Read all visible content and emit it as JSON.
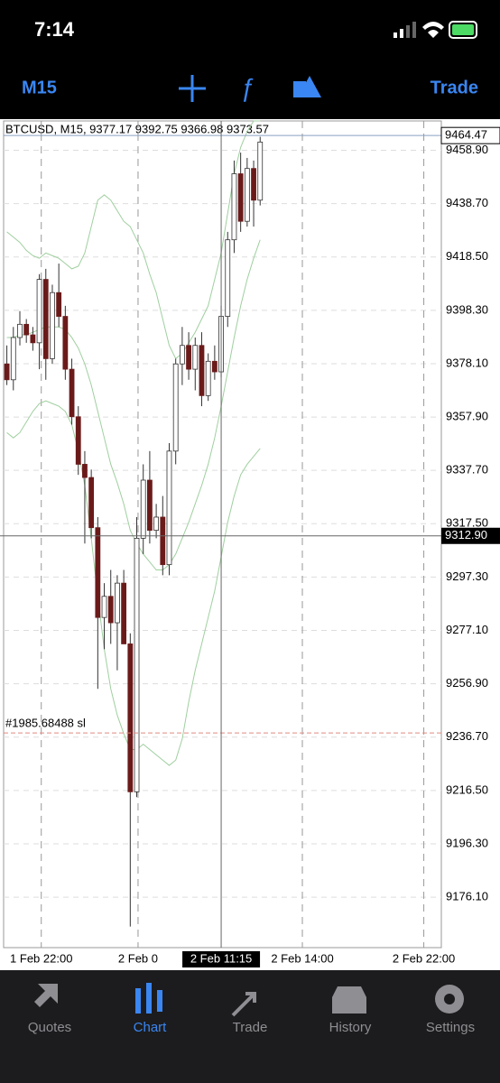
{
  "status_bar": {
    "time": "7:14"
  },
  "toolbar": {
    "timeframe": "M15",
    "action": "Trade"
  },
  "chart_data": {
    "type": "candlestick",
    "title": "BTCUSD, M15, 9377.17 9392.75 9366.98 9373.57",
    "open": [
      9378,
      9372,
      9388,
      9393,
      9389,
      9386,
      9410,
      9380,
      9405,
      9396,
      9376,
      9358,
      9340,
      9335,
      9316,
      9282,
      9290,
      9280,
      9295,
      9272,
      9216,
      9312,
      9334,
      9315,
      9320,
      9302,
      9345,
      9378,
      9385,
      9376,
      9385,
      9366,
      9379,
      9375,
      9396,
      9425,
      9450,
      9432,
      9452,
      9440
    ],
    "high": [
      9385,
      9392,
      9398,
      9395,
      9392,
      9412,
      9414,
      9408,
      9416,
      9400,
      9380,
      9362,
      9345,
      9338,
      9320,
      9295,
      9300,
      9298,
      9300,
      9276,
      9320,
      9340,
      9345,
      9325,
      9328,
      9348,
      9380,
      9392,
      9390,
      9388,
      9390,
      9382,
      9385,
      9400,
      9428,
      9455,
      9458,
      9456,
      9455,
      9464
    ],
    "low": [
      9370,
      9368,
      9385,
      9386,
      9383,
      9376,
      9372,
      9378,
      9392,
      9372,
      9355,
      9336,
      9310,
      9312,
      9255,
      9270,
      9272,
      9262,
      9272,
      9165,
      9214,
      9306,
      9310,
      9312,
      9298,
      9298,
      9340,
      9370,
      9372,
      9368,
      9362,
      9364,
      9372,
      9373,
      9392,
      9420,
      9428,
      9430,
      9430,
      9438
    ],
    "close": [
      9372,
      9388,
      9393,
      9389,
      9386,
      9410,
      9380,
      9405,
      9396,
      9376,
      9358,
      9340,
      9335,
      9316,
      9282,
      9290,
      9280,
      9295,
      9272,
      9216,
      9312,
      9334,
      9315,
      9320,
      9302,
      9345,
      9378,
      9385,
      9376,
      9385,
      9366,
      9379,
      9375,
      9396,
      9425,
      9450,
      9432,
      9452,
      9440,
      9462
    ],
    "up_color": "#ffffff",
    "down_color": "#6b1a1a",
    "band_color": "#9fcf9f",
    "bands": [
      {
        "values": [
          9428,
          9426,
          9424,
          9421,
          9419,
          9418,
          9420,
          9419,
          9418,
          9416,
          9414,
          9415,
          9420,
          9430,
          9440,
          9442,
          9440,
          9436,
          9432,
          9430,
          9425,
          9420,
          9412,
          9405,
          9395,
          9385,
          9380,
          9382,
          9386,
          9390,
          9395,
          9400,
          9410,
          9420,
          9435,
          9450,
          9460,
          9466,
          9470,
          9470
        ]
      },
      {
        "values": [
          9388,
          9388,
          9389,
          9389,
          9390,
          9391,
          9392,
          9392,
          9392,
          9391,
          9388,
          9384,
          9378,
          9370,
          9360,
          9350,
          9340,
          9333,
          9325,
          9315,
          9310,
          9306,
          9303,
          9300,
          9300,
          9302,
          9306,
          9312,
          9318,
          9325,
          9332,
          9340,
          9350,
          9362,
          9375,
          9388,
          9400,
          9410,
          9418,
          9425
        ]
      },
      {
        "values": [
          9352,
          9350,
          9352,
          9356,
          9360,
          9363,
          9364,
          9363,
          9362,
          9360,
          9355,
          9345,
          9332,
          9312,
          9290,
          9270,
          9255,
          9245,
          9238,
          9232,
          9232,
          9234,
          9232,
          9230,
          9228,
          9226,
          9228,
          9236,
          9250,
          9262,
          9272,
          9282,
          9292,
          9305,
          9318,
          9328,
          9336,
          9340,
          9343,
          9346
        ]
      }
    ],
    "xlim": [
      -0.5,
      66.9
    ],
    "ylim": [
      9157,
      9470
    ],
    "yticks": [
      {
        "value": 9458.9,
        "label": "9458.90"
      },
      {
        "value": 9438.7,
        "label": "9438.70"
      },
      {
        "value": 9418.5,
        "label": "9418.50"
      },
      {
        "value": 9398.3,
        "label": "9398.30"
      },
      {
        "value": 9378.1,
        "label": "9378.10"
      },
      {
        "value": 9357.9,
        "label": "9357.90"
      },
      {
        "value": 9337.7,
        "label": "9337.70"
      },
      {
        "value": 9317.5,
        "label": "9317.50"
      },
      {
        "value": 9297.3,
        "label": "9297.30"
      },
      {
        "value": 9277.1,
        "label": "9277.10"
      },
      {
        "value": 9256.9,
        "label": "9256.90"
      },
      {
        "value": 9236.7,
        "label": "9236.70"
      },
      {
        "value": 9216.5,
        "label": "9216.50"
      },
      {
        "value": 9196.3,
        "label": "9196.30"
      },
      {
        "value": 9176.1,
        "label": "9176.10"
      }
    ],
    "xticks": [
      {
        "value": 5.3,
        "label": "1 Feb 22:00"
      },
      {
        "value": 20.2,
        "label": "2 Feb 0"
      },
      {
        "value": 45.5,
        "label": "2 Feb 14:00"
      },
      {
        "value": 64.2,
        "label": "2 Feb 22:00"
      }
    ],
    "bid": {
      "value": 9464.47,
      "label": "9464.47"
    },
    "order_line": {
      "value": 9238.3,
      "label": "#1985.68488 sl"
    },
    "crosshair": {
      "x": 33,
      "time": "2 Feb 11:15",
      "price": {
        "value": 9312.9,
        "label": "9312.90"
      }
    }
  },
  "tab_bar": {
    "tabs": [
      "Quotes",
      "Chart",
      "Trade",
      "History",
      "Settings"
    ],
    "active": 1
  }
}
